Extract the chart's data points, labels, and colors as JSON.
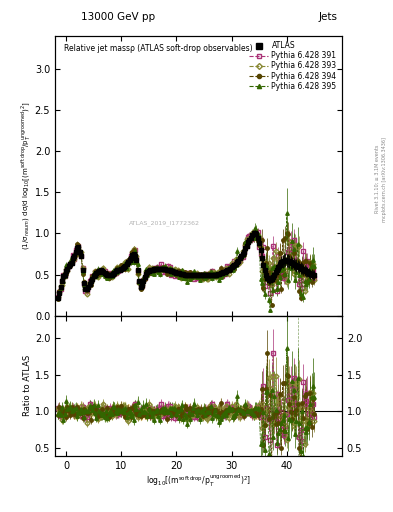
{
  "title_top": "13000 GeV pp",
  "title_right": "Jets",
  "plot_title": "Relative jet massρ (ATLAS soft-drop observables)",
  "watermark": "ATLAS_2019_I1772362",
  "xlabel": "log$_{10}$[(m$^{\\rm soft\\,drop}$/p$_T^{\\rm ungroomed}$)$^2$]",
  "ylabel_main": "(1/σ$_{resum}$) dσ/d log$_{10}$[(m$^{\\rm soft\\,drop}$/p$_T^{\\rm ungroomed}$)$^2$]",
  "ylabel_ratio": "Ratio to ATLAS",
  "right_label": "Rivet 3.1.10; ≥ 3.1M events",
  "right_label2": "mcplots.cern.ch [arXiv:1306.3436]",
  "xlim": [
    -2,
    50
  ],
  "ylim_main": [
    0.0,
    3.4
  ],
  "ylim_ratio": [
    0.4,
    2.3
  ],
  "colors": {
    "atlas": "#000000",
    "p391": "#aa3377",
    "p393": "#888833",
    "p394": "#554400",
    "p395": "#336600"
  },
  "band_colors": {
    "p391": "#ddaacc",
    "p393": "#dddd99",
    "p394": "#ffdd88",
    "p395": "#99cc66"
  },
  "xticks": [
    0,
    10,
    20,
    30,
    40
  ],
  "xtick_labels": [
    "0",
    "10",
    "20",
    "30",
    "40"
  ],
  "x_start": -1.5,
  "x_step": 0.25,
  "n_points": 187,
  "y_atlas_base": [
    0.22,
    0.28,
    0.35,
    0.42,
    0.48,
    0.5,
    0.54,
    0.57,
    0.6,
    0.63,
    0.64,
    0.7,
    0.72,
    0.77,
    0.82,
    0.83,
    0.78,
    0.72,
    0.55,
    0.4,
    0.33,
    0.32,
    0.35,
    0.38,
    0.42,
    0.45,
    0.48,
    0.5,
    0.52,
    0.53,
    0.54,
    0.55,
    0.54,
    0.53,
    0.52,
    0.51,
    0.5,
    0.5,
    0.49,
    0.5,
    0.51,
    0.52,
    0.54,
    0.55,
    0.56,
    0.56,
    0.57,
    0.58,
    0.59,
    0.61,
    0.63,
    0.65,
    0.68,
    0.7,
    0.74,
    0.75,
    0.73,
    0.68,
    0.55,
    0.42,
    0.35,
    0.37,
    0.42,
    0.47,
    0.51,
    0.53,
    0.54,
    0.55,
    0.56,
    0.56,
    0.57,
    0.57,
    0.57,
    0.57,
    0.57,
    0.57,
    0.57,
    0.57,
    0.57,
    0.56,
    0.56,
    0.55,
    0.54,
    0.54,
    0.53,
    0.53,
    0.52,
    0.52,
    0.52,
    0.51,
    0.51,
    0.51,
    0.5,
    0.5,
    0.5,
    0.5,
    0.5,
    0.49,
    0.49,
    0.49,
    0.49,
    0.49,
    0.49,
    0.49,
    0.49,
    0.49,
    0.49,
    0.49,
    0.49,
    0.49,
    0.49,
    0.5,
    0.5,
    0.5,
    0.5,
    0.5,
    0.51,
    0.51,
    0.52,
    0.52,
    0.53,
    0.53,
    0.54,
    0.55,
    0.56,
    0.57,
    0.59,
    0.6,
    0.62,
    0.63,
    0.65,
    0.67,
    0.7,
    0.72,
    0.75,
    0.78,
    0.82,
    0.85,
    0.89,
    0.92,
    0.95,
    0.98,
    1.0,
    1.01,
    0.99,
    0.95,
    0.88,
    0.8,
    0.7,
    0.62,
    0.55,
    0.49,
    0.46,
    0.44,
    0.44,
    0.45,
    0.47,
    0.5,
    0.53,
    0.56,
    0.59,
    0.62,
    0.65,
    0.66,
    0.67,
    0.68,
    0.67,
    0.67,
    0.66,
    0.65,
    0.64,
    0.63,
    0.62,
    0.61,
    0.6,
    0.59,
    0.58,
    0.57,
    0.56,
    0.55,
    0.54,
    0.53,
    0.52,
    0.51,
    0.51,
    0.5,
    0.5
  ]
}
